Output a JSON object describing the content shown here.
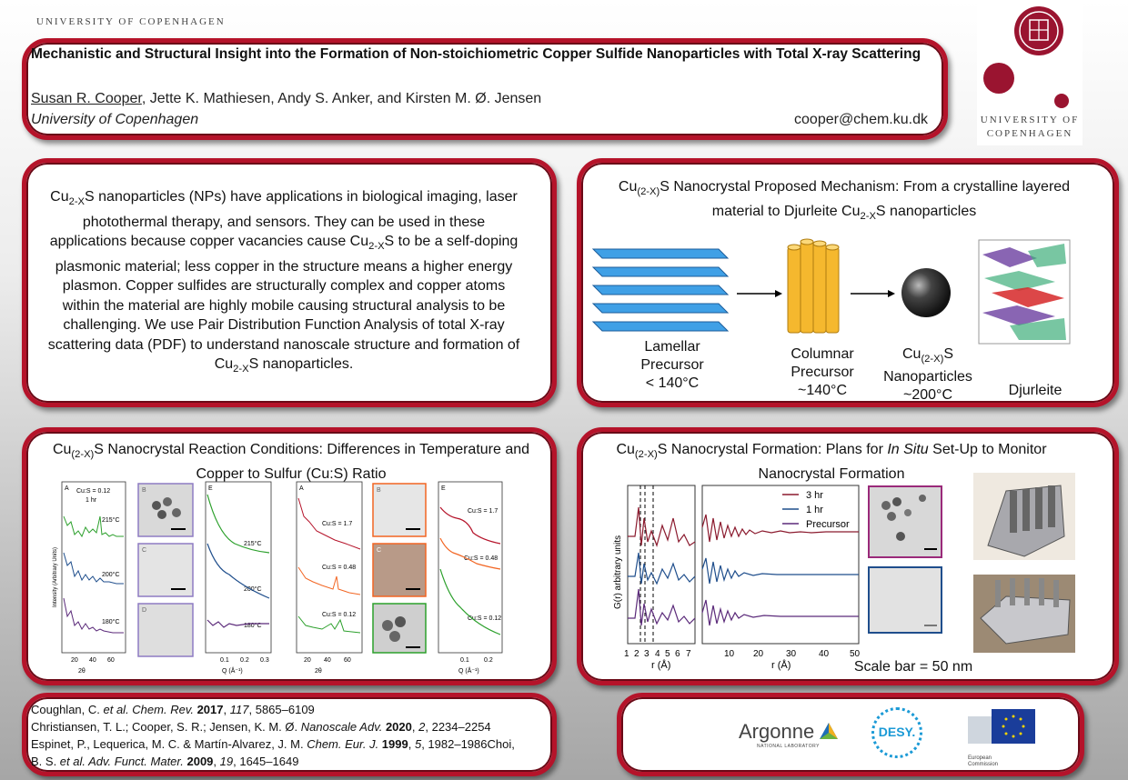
{
  "header": {
    "university_small": "UNIVERSITY OF COPENHAGEN",
    "title": "Mechanistic and Structural Insight into the Formation of Non-stoichiometric Copper Sulfide Nanoparticles with Total X-ray Scattering",
    "author_first": "Susan R. Cooper",
    "authors_rest": ", Jette K. Mathiesen, Andy S. Anker, and Kirsten M. Ø. Jensen",
    "affiliation": "University of Copenhagen",
    "email": "cooper@chem.ku.dk",
    "logo_line1": "UNIVERSITY OF",
    "logo_line2": "COPENHAGEN"
  },
  "intro": {
    "p1": "Cu",
    "p1_sub": "2-X",
    "p2": "S nanoparticles (NPs) have applications in biological imaging, laser photothermal therapy, and sensors. They can be used in these applications because copper vacancies cause Cu",
    "p2_sub": "2-X",
    "p3": "S to be a self-doping plasmonic material; less copper in the structure means a higher energy plasmon. Copper sulfides are structurally complex and copper atoms within the material are highly mobile causing structural analysis to be challenging. We use Pair Distribution Function Analysis of total X-ray scattering data (PDF) to understand nanoscale structure and formation of Cu",
    "p3_sub": "2-X",
    "p4": "S nanoparticles."
  },
  "mechanism": {
    "t1": "Cu",
    "t1_sub": "(2-X)",
    "t2": "S Nanocrystal Proposed Mechanism: From a crystalline layered material to Djurleite Cu",
    "t2_sub": "2-X",
    "t3": "S nanoparticles",
    "lamellar": "Lamellar",
    "lamellar2": "Precursor",
    "lamellar3": "< 140°C",
    "columnar": "Columnar",
    "columnar2": "Precursor",
    "columnar3": "~140°C",
    "np1": "Cu",
    "np1_sub": "(2-X)",
    "np1b": "S",
    "np2": "Nanoparticles",
    "np3": "~200°C",
    "djurleite": "Djurleite"
  },
  "conditions": {
    "t1": "Cu",
    "t1_sub": "(2-X)",
    "t2": "S Nanocrystal Reaction Conditions: Differences in Temperature and Copper to Sulfur (Cu:S) Ratio",
    "left": {
      "panel_a": "A",
      "ratio": "Cu:S = 0.12",
      "time": "1 hr",
      "t215": "215°C",
      "t200": "200°C",
      "t180": "180°C",
      "ylabel": "Intensity (Arbitrary Units)",
      "xlabel": "2θ",
      "xticks": [
        "20",
        "40",
        "60"
      ],
      "panel_b": "B",
      "panel_c": "C",
      "panel_d": "D",
      "panel_e": "E",
      "e215": "215°C",
      "e200": "200°C",
      "e180": "180°C",
      "e_xlabel": "Q (Å⁻¹)",
      "e_xticks": [
        "0.1",
        "0.2",
        "0.3"
      ]
    },
    "right": {
      "panel_a": "A",
      "r17": "Cu:S = 1.7",
      "r048": "Cu:S = 0.48",
      "r012": "Cu:S = 0.12",
      "xlabel": "2θ",
      "xticks": [
        "20",
        "40",
        "60"
      ],
      "panel_b": "B",
      "panel_c": "C",
      "panel_e": "E",
      "e17": "Cu:S = 1.7",
      "e048": "Cu:S = 0.48",
      "e012": "Cu:S = 0.12",
      "e_xlabel": "Q (Å⁻¹)",
      "e_xticks": [
        "0.1",
        "0.2"
      ]
    }
  },
  "formation": {
    "t1": "Cu",
    "t1_sub": "(2-X)",
    "t2": "S Nanocrystal Formation: Plans for ",
    "t2_italic": "In Situ",
    "t3": " Set-Up to Monitor Nanocrystal Formation",
    "legend": [
      "3 hr",
      "1 hr",
      "Precursor"
    ],
    "ylabel": "G(r) arbitrary units",
    "xlabel": "r (Å)",
    "xticks_left": [
      "1",
      "2",
      "3",
      "4",
      "5",
      "6",
      "7"
    ],
    "xticks_right": [
      "10",
      "20",
      "30",
      "40",
      "50"
    ],
    "scale_bar": "Scale bar = 50 nm"
  },
  "colors": {
    "border": "#b5132a",
    "red_trace": "#8b1a2e",
    "blue_trace": "#1f4e8c",
    "purple_trace": "#5b2a7a",
    "green_trace": "#2ca02c",
    "orange_trace": "#f26522"
  },
  "references": {
    "r1a": "Coughlan, C. ",
    "r1i": "et al. Chem. Rev.",
    "r1b": " 2017",
    "r1c": ", ",
    "r1d": "117",
    "r1e": ", 5865–6109",
    "r2a": "Christiansen, T. L.; Cooper, S. R.; Jensen, K. M. Ø. ",
    "r2i": "Nanoscale Adv.",
    "r2b": " 2020",
    "r2c": ", ",
    "r2d": "2",
    "r2e": ", 2234–2254",
    "r3a": "Espinet, P., Lequerica, M. C. & Martín-Alvarez, J. M. ",
    "r3i": "Chem. Eur. J.",
    "r3b": " 1999",
    "r3c": ", ",
    "r3d": "5",
    "r3e": ", 1982–1986Choi,",
    "r4a": "B. S. ",
    "r4i": "et al. Adv. Funct. Mater.",
    "r4b": " 2009",
    "r4c": ", ",
    "r4d": "19",
    "r4e": ", 1645–1649"
  },
  "sponsors": {
    "argonne": "Argonne",
    "argonne_sub": "NATIONAL LABORATORY",
    "desy": "DESY.",
    "ec": "European Commission"
  }
}
